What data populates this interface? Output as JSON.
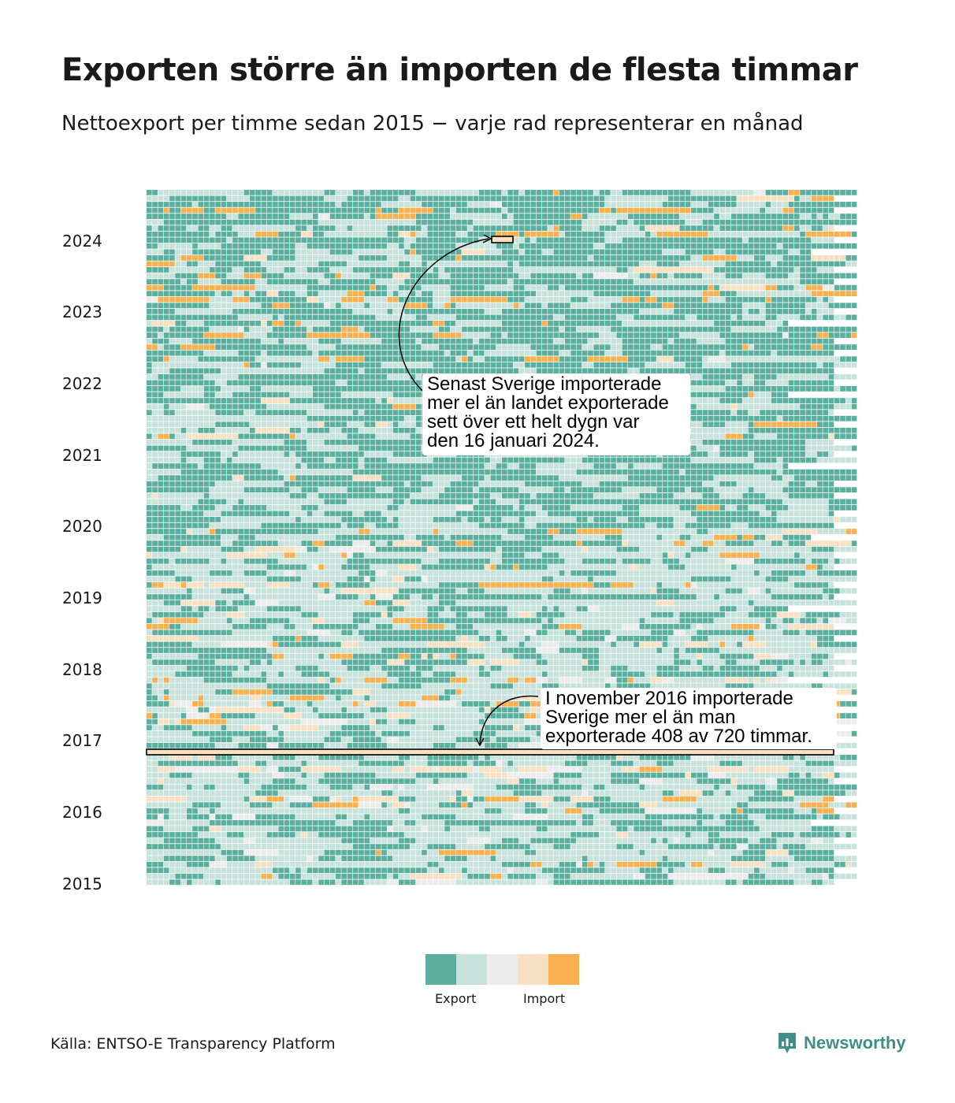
{
  "title": "Exporten större än importen de flesta timmar",
  "subtitle": "Nettoexport per timme sedan 2015 − varje rad representerar en månad",
  "chart_data": {
    "type": "heatmap",
    "x_unit": "timme i månaden",
    "y_unit": "månad",
    "y_tick_labels": [
      "2024",
      "2023",
      "2022",
      "2021",
      "2020",
      "2019",
      "2018",
      "2017",
      "2016",
      "2015"
    ],
    "colors": {
      "strong_export": "#5aaf9f",
      "export": "#c8e2dc",
      "neutral": "#ececec",
      "import": "#f8e0c3",
      "strong_import": "#f9b04e"
    },
    "legend": {
      "swatches": [
        "#5aaf9f",
        "#c8e2dc",
        "#ececec",
        "#f8e0c3",
        "#f9b04e"
      ],
      "export_label": "Export",
      "import_label": "Import"
    },
    "annotations": [
      {
        "text": "Senast Sverige importerade\nmer el än landet exporterade\nsett över ett helt dygn var\nden 16 januari 2024.",
        "date": "2024-01-16"
      },
      {
        "text": "I november 2016 importerade\nSverige mer el än man\nexporterade 408 av 720 timmar.",
        "month": "2016-11",
        "import_hours": 408,
        "total_hours": 720
      }
    ]
  },
  "source": "Källa: ENTSO-E Transparency Platform",
  "brand": "Newsworthy"
}
